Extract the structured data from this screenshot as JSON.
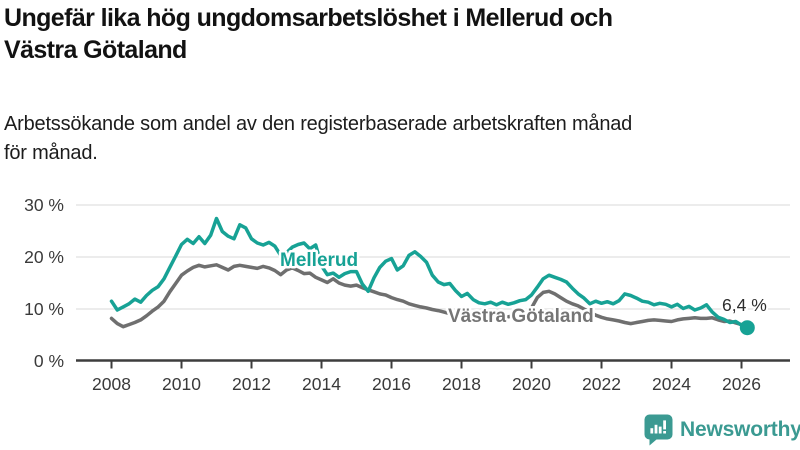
{
  "header": {
    "title": "Ungefär lika hög ungdomsarbetslöshet i Mellerud och Västra Götaland",
    "title_lines": [
      "Ungefär lika hög ungdomsarbetslöshet i Mellerud och",
      "Västra Götaland"
    ],
    "subtitle": "Arbetssökande som andel av den registerbaserade arbetskraften månad för månad.",
    "subtitle_lines": [
      "Arbetssökande som andel av den registerbaserade arbetskraften månad",
      "för månad."
    ]
  },
  "chart_data": {
    "type": "line",
    "title": "Ungefär lika hög ungdomsarbetslöshet i Mellerud och Västra Götaland",
    "subtitle": "Arbetssökande som andel av den registerbaserade arbetskraften månad för månad.",
    "xlabel": "",
    "ylabel": "",
    "x_unit": "year",
    "x_start": 2008.0,
    "x_step": 0.16667,
    "xlim": [
      2007.9,
      2027.4
    ],
    "ylim": [
      0,
      32
    ],
    "grid": "horizontal",
    "legend_position": "inline-labels",
    "x_tick_values": [
      2008,
      2010,
      2012,
      2014,
      2016,
      2018,
      2020,
      2022,
      2024,
      2026
    ],
    "x_tick_labels": [
      "2008",
      "2010",
      "2012",
      "2014",
      "2016",
      "2018",
      "2020",
      "2022",
      "2024",
      "2026"
    ],
    "y_tick_values": [
      0,
      10,
      20,
      30
    ],
    "y_tick_labels": [
      "0 %",
      "10 %",
      "20 %",
      "30 %"
    ],
    "end_label": "6,4 %",
    "end_value": 6.4,
    "series": [
      {
        "name": "Mellerud",
        "color": "#17a295",
        "values": [
          11.5,
          9.8,
          10.4,
          11.0,
          11.9,
          11.3,
          12.6,
          13.6,
          14.3,
          15.8,
          18.0,
          20.2,
          22.4,
          23.4,
          22.6,
          23.9,
          22.6,
          24.2,
          27.4,
          24.9,
          24.0,
          23.5,
          26.2,
          25.6,
          23.5,
          22.7,
          22.3,
          22.8,
          22.1,
          20.3,
          20.8,
          21.9,
          22.4,
          22.7,
          21.6,
          22.3,
          18.3,
          16.6,
          16.9,
          16.1,
          16.8,
          17.2,
          17.2,
          14.8,
          13.4,
          16.0,
          18.0,
          19.2,
          19.7,
          17.5,
          18.3,
          20.3,
          21.0,
          20.1,
          19.0,
          16.5,
          15.2,
          14.7,
          14.9,
          13.5,
          12.4,
          13.0,
          11.8,
          11.2,
          11.0,
          11.3,
          10.8,
          11.3,
          10.9,
          11.2,
          11.6,
          11.8,
          12.7,
          14.2,
          15.8,
          16.5,
          16.1,
          15.7,
          15.2,
          14.0,
          12.9,
          12.1,
          11.0,
          11.5,
          11.1,
          11.4,
          11.0,
          11.6,
          12.9,
          12.6,
          12.1,
          11.5,
          11.3,
          10.8,
          11.1,
          10.9,
          10.4,
          10.9,
          10.1,
          10.5,
          9.8,
          10.2,
          10.8,
          9.4,
          8.4,
          8.0,
          7.4,
          7.6,
          6.9,
          6.4
        ]
      },
      {
        "name": "Västra Götaland",
        "color": "#6f6f6f",
        "values": [
          8.2,
          7.2,
          6.6,
          7.0,
          7.4,
          7.9,
          8.7,
          9.6,
          10.4,
          11.5,
          13.3,
          14.9,
          16.5,
          17.3,
          18.0,
          18.4,
          18.1,
          18.3,
          18.5,
          18.0,
          17.5,
          18.2,
          18.4,
          18.2,
          18.0,
          17.8,
          18.2,
          17.9,
          17.4,
          16.6,
          17.5,
          17.9,
          17.4,
          16.8,
          16.9,
          16.1,
          15.6,
          15.1,
          15.8,
          15.0,
          14.6,
          14.4,
          14.6,
          14.1,
          13.7,
          13.3,
          12.9,
          12.7,
          12.2,
          11.8,
          11.5,
          11.0,
          10.7,
          10.4,
          10.2,
          9.9,
          9.7,
          9.4,
          9.1,
          8.8,
          8.5,
          8.3,
          8.2,
          8.1,
          8.0,
          8.0,
          8.1,
          8.3,
          8.5,
          8.7,
          8.9,
          9.2,
          10.2,
          12.2,
          13.2,
          13.4,
          12.9,
          12.2,
          11.5,
          11.0,
          10.6,
          10.0,
          9.4,
          8.8,
          8.4,
          8.1,
          7.9,
          7.7,
          7.4,
          7.2,
          7.4,
          7.6,
          7.8,
          7.9,
          7.8,
          7.7,
          7.6,
          7.9,
          8.1,
          8.2,
          8.3,
          8.2,
          8.2,
          8.3,
          7.9,
          7.6,
          7.7,
          7.3,
          7.0,
          6.9
        ]
      }
    ]
  },
  "colors": {
    "accent_teal": "#17a295",
    "series_gray": "#6f6f6f",
    "grid": "#d9d9d9",
    "axis": "#3d3d3d",
    "logo_teal": "#3b9a92"
  },
  "logo": {
    "name": "Newsworthy",
    "icon": "newsworthy-chart-bubble-icon"
  }
}
